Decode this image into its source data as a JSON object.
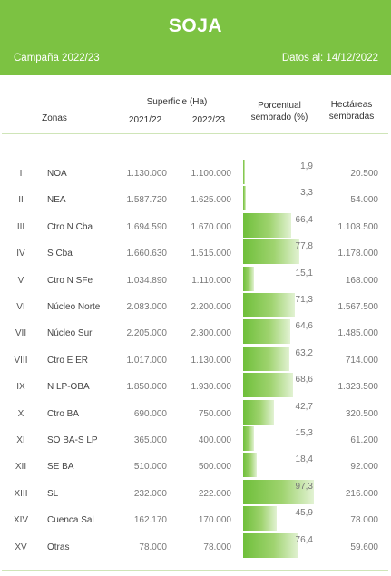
{
  "header": {
    "title": "SOJA",
    "campaign": "Campaña 2022/23",
    "date": "Datos al: 14/12/2022"
  },
  "columns": {
    "zonas": "Zonas",
    "superficie": "Superficie (Ha)",
    "y1": "2021/22",
    "y2": "2022/23",
    "pct_line1": "Porcentual",
    "pct_line2": "sembrado (%)",
    "ha_line1": "Hectáreas",
    "ha_line2": "sembradas"
  },
  "rows": [
    {
      "num": "I",
      "zona": "NOA",
      "s1": "1.130.000",
      "s2": "1.100.000",
      "pct": "1,9",
      "pct_value": 1.9,
      "ha": "20.500"
    },
    {
      "num": "II",
      "zona": "NEA",
      "s1": "1.587.720",
      "s2": "1.625.000",
      "pct": "3,3",
      "pct_value": 3.3,
      "ha": "54.000"
    },
    {
      "num": "III",
      "zona": "Ctro N Cba",
      "s1": "1.694.590",
      "s2": "1.670.000",
      "pct": "66,4",
      "pct_value": 66.4,
      "ha": "1.108.500"
    },
    {
      "num": "IV",
      "zona": "S Cba",
      "s1": "1.660.630",
      "s2": "1.515.000",
      "pct": "77,8",
      "pct_value": 77.8,
      "ha": "1.178.000"
    },
    {
      "num": "V",
      "zona": "Ctro N SFe",
      "s1": "1.034.890",
      "s2": "1.110.000",
      "pct": "15,1",
      "pct_value": 15.1,
      "ha": "168.000"
    },
    {
      "num": "VI",
      "zona": "Núcleo Norte",
      "s1": "2.083.000",
      "s2": "2.200.000",
      "pct": "71,3",
      "pct_value": 71.3,
      "ha": "1.567.500"
    },
    {
      "num": "VII",
      "zona": "Núcleo Sur",
      "s1": "2.205.000",
      "s2": "2.300.000",
      "pct": "64,6",
      "pct_value": 64.6,
      "ha": "1.485.000"
    },
    {
      "num": "VIII",
      "zona": "Ctro E ER",
      "s1": "1.017.000",
      "s2": "1.130.000",
      "pct": "63,2",
      "pct_value": 63.2,
      "ha": "714.000"
    },
    {
      "num": "IX",
      "zona": "N LP-OBA",
      "s1": "1.850.000",
      "s2": "1.930.000",
      "pct": "68,6",
      "pct_value": 68.6,
      "ha": "1.323.500"
    },
    {
      "num": "X",
      "zona": "Ctro BA",
      "s1": "690.000",
      "s2": "750.000",
      "pct": "42,7",
      "pct_value": 42.7,
      "ha": "320.500"
    },
    {
      "num": "XI",
      "zona": "SO BA-S LP",
      "s1": "365.000",
      "s2": "400.000",
      "pct": "15,3",
      "pct_value": 15.3,
      "ha": "61.200"
    },
    {
      "num": "XII",
      "zona": "SE BA",
      "s1": "510.000",
      "s2": "500.000",
      "pct": "18,4",
      "pct_value": 18.4,
      "ha": "92.000"
    },
    {
      "num": "XIII",
      "zona": "SL",
      "s1": "232.000",
      "s2": "222.000",
      "pct": "97,3",
      "pct_value": 97.3,
      "ha": "216.000"
    },
    {
      "num": "XIV",
      "zona": "Cuenca Sal",
      "s1": "162.170",
      "s2": "170.000",
      "pct": "45,9",
      "pct_value": 45.9,
      "ha": "78.000"
    },
    {
      "num": "XV",
      "zona": "Otras",
      "s1": "78.000",
      "s2": "78.000",
      "pct": "76,4",
      "pct_value": 76.4,
      "ha": "59.600"
    }
  ],
  "colors": {
    "banner": "#7cc242",
    "bar": "#6fbf3a"
  }
}
